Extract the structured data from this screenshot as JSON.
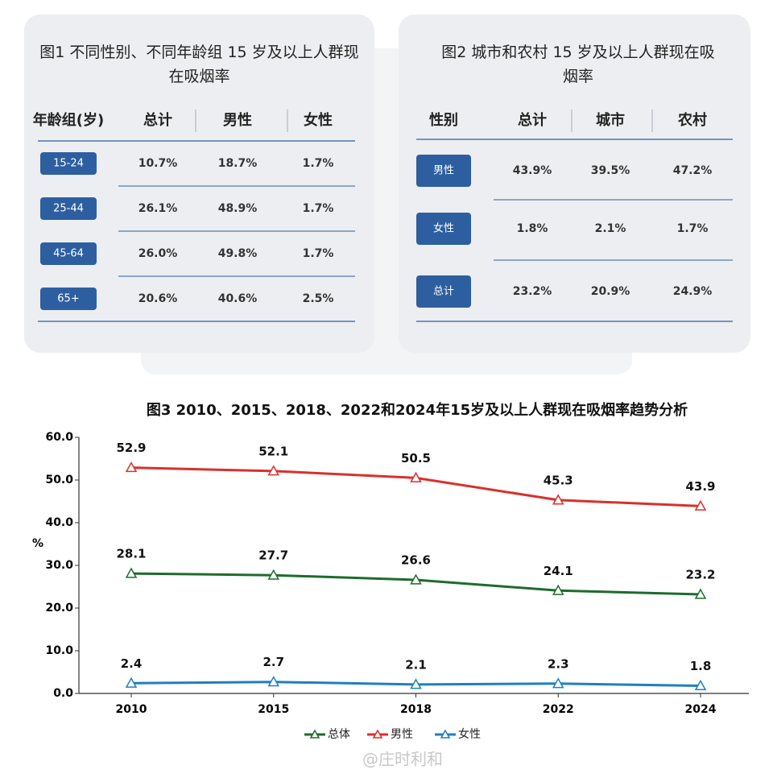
{
  "table1": {
    "title": "图1 不同性别、不同年龄组 15 岁及以上人群现在吸烟率",
    "header": [
      "年龄组(岁)",
      "总计",
      "男性",
      "女性"
    ],
    "rows": [
      [
        "15-24",
        "10.7%",
        "18.7%",
        "1.7%"
      ],
      [
        "25-44",
        "26.1%",
        "48.9%",
        "1.7%"
      ],
      [
        "45-64",
        "26.0%",
        "49.8%",
        "1.7%"
      ],
      [
        "65+",
        "20.6%",
        "40.6%",
        "2.5%"
      ]
    ]
  },
  "table2": {
    "title": "图2 城市和农村 15 岁及以上人群现在吸烟率",
    "header": [
      "性别",
      "总计",
      "城市",
      "农村"
    ],
    "rows": [
      [
        "男性",
        "43.9%",
        "39.5%",
        "47.2%"
      ],
      [
        "女性",
        "1.8%",
        "2.1%",
        "1.7%"
      ],
      [
        "总计",
        "23.2%",
        "20.9%",
        "24.9%"
      ]
    ]
  },
  "chart_data": {
    "type": "line",
    "title": "图3 2010、2015、2018、2022和2024年15岁及以上人群现在吸烟率趋势分析",
    "y_label": "%",
    "categories": [
      "2010",
      "2015",
      "2018",
      "2022",
      "2024"
    ],
    "series": [
      {
        "name": "总体",
        "color": "#1e6b2e",
        "values": [
          28.1,
          27.7,
          26.6,
          24.1,
          23.2
        ]
      },
      {
        "name": "男性",
        "color": "#d9302c",
        "values": [
          52.9,
          52.1,
          50.5,
          45.3,
          43.9
        ]
      },
      {
        "name": "女性",
        "color": "#1f7fc1",
        "values": [
          2.4,
          2.7,
          2.1,
          2.3,
          1.8
        ]
      }
    ],
    "ylim": [
      0,
      60
    ],
    "yticks": [
      {
        "value": 0,
        "label": "0.0"
      },
      {
        "value": 10,
        "label": "10.0"
      },
      {
        "value": 20,
        "label": "20.0"
      },
      {
        "value": 30,
        "label": "30.0"
      },
      {
        "value": 40,
        "label": "40.0"
      },
      {
        "value": 50,
        "label": "50.0"
      },
      {
        "value": 60,
        "label": "60.0"
      }
    ],
    "legend": "bottom"
  },
  "watermark": "@庄时利和"
}
